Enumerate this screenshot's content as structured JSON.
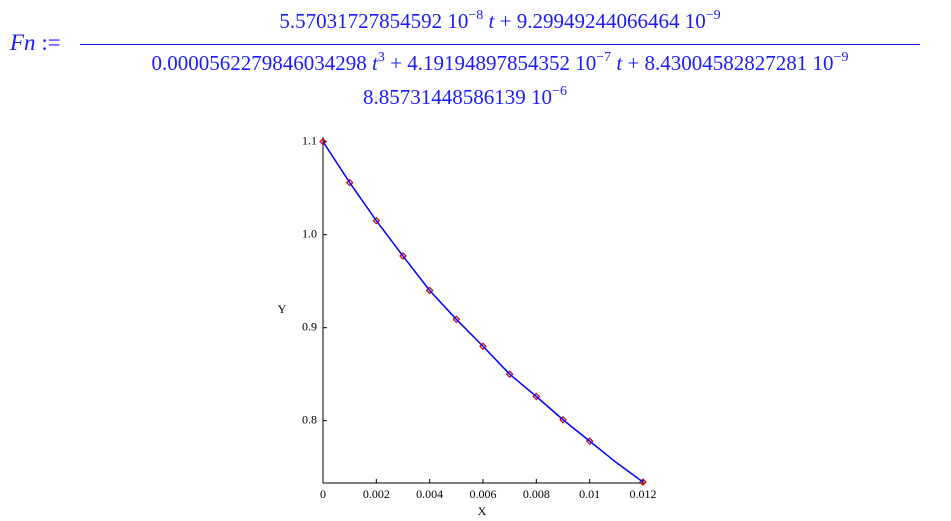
{
  "formula": {
    "name": "Fn",
    "assign": ":=",
    "numerator": [
      "5.57031727854592 10",
      "−8",
      "t",
      "+ 9.29949244066464 10",
      "−9"
    ],
    "denominator": [
      "0.0000562279846034298",
      "t",
      "3",
      "+ 4.19194897854352 10",
      "−7",
      "t",
      "+ 8.43004582827281 10",
      "−9"
    ],
    "extra": [
      "8.85731448586139 10",
      "−6"
    ]
  },
  "chart_data": {
    "type": "scatter",
    "xlabel": "X",
    "ylabel": "Y",
    "xlim": [
      0,
      0.012
    ],
    "ylim": [
      0.733,
      1.105
    ],
    "xticks": [
      0,
      0.002,
      0.004,
      0.006,
      0.008,
      0.01,
      0.012
    ],
    "yticks": [
      0.8,
      0.9,
      {
        "value": 1,
        "label": "1.0"
      },
      1.1
    ],
    "series": [
      {
        "color": "#cc0000",
        "x": [
          0,
          0.001,
          0.002,
          0.003,
          0.004,
          0.005,
          0.006,
          0.007,
          0.008,
          0.009,
          0.01,
          0.012
        ],
        "values": [
          1.1,
          1.056,
          1.015,
          0.977,
          0.94,
          0.909,
          0.88,
          0.85,
          0.826,
          0.801,
          0.778,
          0.734
        ]
      },
      {
        "color": "#0000ff",
        "line": true,
        "x": [
          0,
          0.001,
          0.002,
          0.003,
          0.004,
          0.005,
          0.006,
          0.007,
          0.008,
          0.009,
          0.01,
          0.011,
          0.012
        ],
        "values": [
          1.1,
          1.056,
          1.015,
          0.977,
          0.94,
          0.909,
          0.88,
          0.85,
          0.826,
          0.801,
          0.778,
          0.755,
          0.734
        ]
      }
    ]
  }
}
